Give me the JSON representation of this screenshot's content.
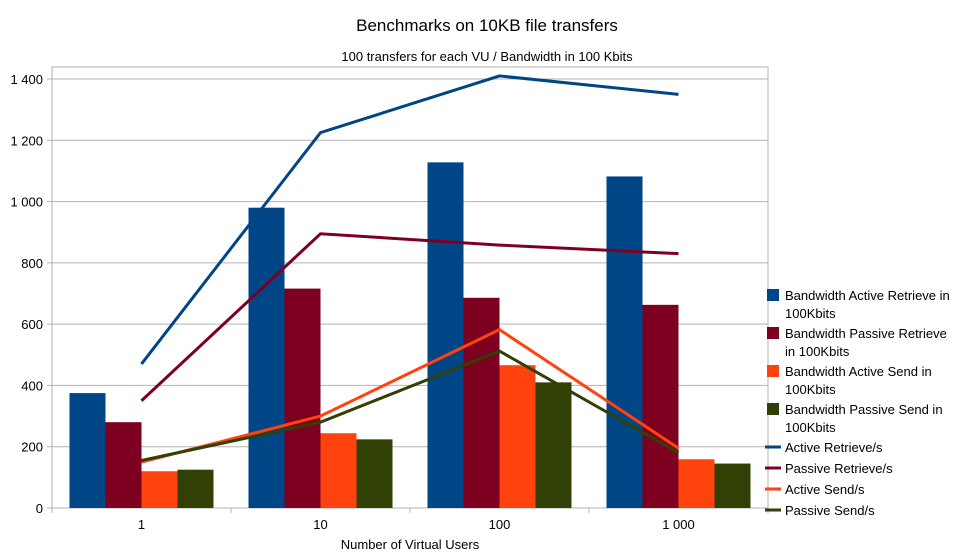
{
  "chart_data": {
    "type": "bar",
    "title": "Benchmarks on 10KB file transfers",
    "subtitle": "100 transfers for each VU / Bandwidth in 100 Kbits",
    "xlabel": "Number of Virtual Users",
    "ylabel": "",
    "categories": [
      "1",
      "10",
      "100",
      "1 000"
    ],
    "ylim": [
      0,
      1400
    ],
    "yticks": [
      0,
      200,
      400,
      600,
      800,
      1000,
      1200,
      1400
    ],
    "ytick_labels": [
      "0",
      "200",
      "400",
      "600",
      "800",
      "1 000",
      "1 200",
      "1 400"
    ],
    "grid": true,
    "legend_position": "right",
    "series": [
      {
        "name": "Bandwidth Active Retrieve in 100Kbits",
        "legend_lines": [
          "Bandwidth Active Retrieve in",
          "100Kbits"
        ],
        "kind": "bar",
        "color": "#004586",
        "values": [
          375,
          980,
          1128,
          1082
        ]
      },
      {
        "name": "Bandwidth Passive Retrieve in 100Kbits",
        "legend_lines": [
          "Bandwidth Passive Retrieve",
          "in 100Kbits"
        ],
        "kind": "bar",
        "color": "#7e0021",
        "values": [
          280,
          716,
          686,
          663
        ]
      },
      {
        "name": "Bandwidth Active Send in 100Kbits",
        "legend_lines": [
          "Bandwidth Active Send in",
          "100Kbits"
        ],
        "kind": "bar",
        "color": "#ff420e",
        "values": [
          120,
          244,
          466,
          159
        ]
      },
      {
        "name": "Bandwidth Passive Send in 100Kbits",
        "legend_lines": [
          "Bandwidth Passive Send in",
          "100Kbits"
        ],
        "kind": "bar",
        "color": "#314004",
        "values": [
          125,
          224,
          410,
          145
        ]
      },
      {
        "name": "Active Retrieve/s",
        "legend_lines": [
          "Active Retrieve/s"
        ],
        "kind": "line",
        "color": "#004586",
        "values": [
          470,
          1225,
          1410,
          1350
        ]
      },
      {
        "name": "Passive Retrieve/s",
        "legend_lines": [
          "Passive Retrieve/s"
        ],
        "kind": "line",
        "color": "#7e0021",
        "values": [
          350,
          895,
          858,
          830
        ]
      },
      {
        "name": "Active Send/s",
        "legend_lines": [
          "Active Send/s"
        ],
        "kind": "line",
        "color": "#ff420e",
        "values": [
          150,
          300,
          582,
          195
        ]
      },
      {
        "name": "Passive Send/s",
        "legend_lines": [
          "Passive Send/s"
        ],
        "kind": "line",
        "color": "#314004",
        "values": [
          155,
          280,
          512,
          180
        ]
      }
    ]
  }
}
